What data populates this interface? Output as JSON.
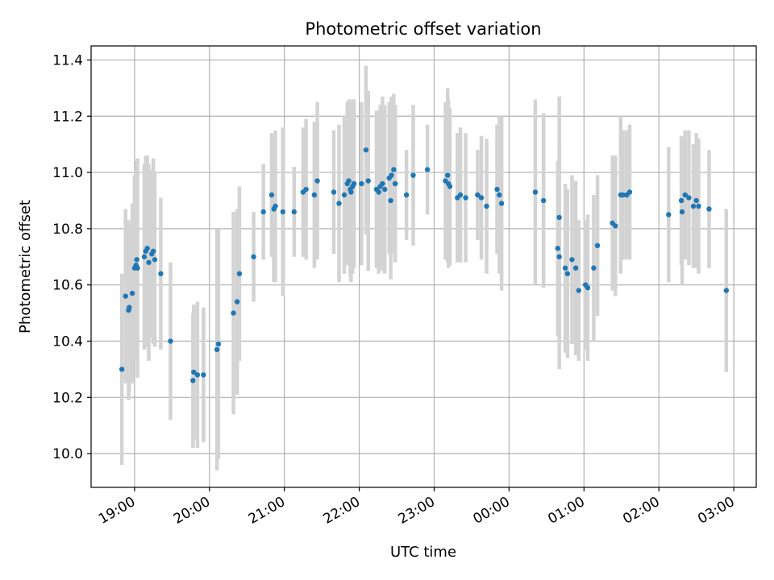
{
  "chart_data": {
    "type": "scatter",
    "title": "Photometric offset variation",
    "xlabel": "UTC time",
    "ylabel": "Photometric offset",
    "xlim": [
      18.42,
      27.3
    ],
    "ylim": [
      9.88,
      11.45
    ],
    "grid": true,
    "x_ticks": [
      {
        "value": 19,
        "label": "19:00"
      },
      {
        "value": 20,
        "label": "20:00"
      },
      {
        "value": 21,
        "label": "21:00"
      },
      {
        "value": 22,
        "label": "22:00"
      },
      {
        "value": 23,
        "label": "23:00"
      },
      {
        "value": 24,
        "label": "00:00"
      },
      {
        "value": 25,
        "label": "01:00"
      },
      {
        "value": 26,
        "label": "02:00"
      },
      {
        "value": 27,
        "label": "03:00"
      }
    ],
    "y_ticks": [
      {
        "value": 10.0,
        "label": "10.0"
      },
      {
        "value": 10.2,
        "label": "10.2"
      },
      {
        "value": 10.4,
        "label": "10.4"
      },
      {
        "value": 10.6,
        "label": "10.6"
      },
      {
        "value": 10.8,
        "label": "10.8"
      },
      {
        "value": 11.0,
        "label": "11.0"
      },
      {
        "value": 11.2,
        "label": "11.2"
      },
      {
        "value": 11.4,
        "label": "11.4"
      }
    ],
    "colors": {
      "point": "#1f77b4",
      "errorbar": "#d3d3d3",
      "grid": "#b0b0b0",
      "axes": "#000000"
    },
    "series": [
      {
        "x": [
          18.83,
          18.88,
          18.92,
          18.93,
          18.97,
          19.0,
          19.02,
          19.03,
          19.04,
          19.13,
          19.15,
          19.17,
          19.19,
          19.23,
          19.25,
          19.27,
          19.35,
          19.48,
          19.78,
          19.79,
          19.84,
          19.92,
          20.1,
          20.12,
          20.32,
          20.37,
          20.4,
          20.59,
          20.72,
          20.83,
          20.86,
          20.88,
          20.98,
          21.13,
          21.25,
          21.29,
          21.4,
          21.44,
          21.66,
          21.73,
          21.8,
          21.84,
          21.86,
          21.88,
          21.89,
          21.91,
          21.93,
          22.03,
          22.09,
          22.12,
          22.23,
          22.26,
          22.28,
          22.31,
          22.34,
          22.4,
          22.42,
          22.43,
          22.46,
          22.48,
          22.48,
          22.63,
          22.72,
          22.91,
          23.15,
          23.18,
          23.19,
          23.21,
          23.31,
          23.35,
          23.42,
          23.58,
          23.63,
          23.7,
          23.84,
          23.87,
          23.9,
          24.35,
          24.46,
          24.65,
          24.67,
          24.67,
          24.75,
          24.78,
          24.84,
          24.89,
          24.93,
          25.02,
          25.05,
          25.13,
          25.18,
          25.38,
          25.42,
          25.49,
          25.52,
          25.57,
          25.61,
          26.13,
          26.3,
          26.31,
          26.35,
          26.4,
          26.46,
          26.5,
          26.53,
          26.67,
          26.9
        ],
        "y": [
          10.3,
          10.56,
          10.51,
          10.52,
          10.57,
          10.66,
          10.67,
          10.69,
          10.66,
          10.7,
          10.72,
          10.73,
          10.68,
          10.71,
          10.72,
          10.69,
          10.64,
          10.4,
          10.26,
          10.29,
          10.28,
          10.28,
          10.37,
          10.39,
          10.5,
          10.54,
          10.64,
          10.7,
          10.86,
          10.92,
          10.87,
          10.88,
          10.86,
          10.86,
          10.93,
          10.94,
          10.92,
          10.97,
          10.93,
          10.89,
          10.92,
          10.96,
          10.97,
          10.94,
          10.93,
          10.95,
          10.96,
          10.96,
          11.08,
          10.97,
          10.94,
          10.93,
          10.95,
          10.96,
          10.94,
          10.98,
          10.9,
          10.99,
          11.01,
          10.96,
          10.96,
          10.92,
          10.99,
          11.01,
          10.97,
          10.99,
          10.96,
          10.95,
          10.91,
          10.92,
          10.91,
          10.92,
          10.91,
          10.88,
          10.94,
          10.92,
          10.89,
          10.93,
          10.9,
          10.73,
          10.7,
          10.84,
          10.66,
          10.64,
          10.69,
          10.66,
          10.58,
          10.6,
          10.59,
          10.66,
          10.74,
          10.82,
          10.81,
          10.92,
          10.92,
          10.92,
          10.93,
          10.85,
          10.9,
          10.86,
          10.92,
          10.91,
          10.88,
          10.9,
          10.88,
          10.87,
          10.58
        ],
        "err": [
          0.34,
          0.31,
          0.32,
          0.3,
          0.32,
          0.33,
          0.34,
          0.35,
          0.39,
          0.33,
          0.34,
          0.33,
          0.35,
          0.3,
          0.33,
          0.31,
          0.27,
          0.28,
          0.24,
          0.24,
          0.26,
          0.24,
          0.43,
          0.41,
          0.36,
          0.33,
          0.31,
          0.16,
          0.17,
          0.22,
          0.26,
          0.27,
          0.3,
          0.16,
          0.23,
          0.25,
          0.26,
          0.28,
          0.22,
          0.28,
          0.28,
          0.29,
          0.29,
          0.31,
          0.32,
          0.31,
          0.3,
          0.29,
          0.3,
          0.32,
          0.28,
          0.29,
          0.29,
          0.31,
          0.3,
          0.27,
          0.28,
          0.28,
          0.27,
          0.27,
          0.28,
          0.16,
          0.25,
          0.16,
          0.28,
          0.31,
          0.3,
          0.28,
          0.23,
          0.24,
          0.23,
          0.16,
          0.22,
          0.24,
          0.23,
          0.28,
          0.31,
          0.33,
          0.31,
          0.31,
          0.4,
          0.43,
          0.3,
          0.3,
          0.3,
          0.31,
          0.25,
          0.23,
          0.26,
          0.26,
          0.25,
          0.24,
          0.25,
          0.28,
          0.23,
          0.23,
          0.24,
          0.24,
          0.23,
          0.26,
          0.23,
          0.24,
          0.22,
          0.24,
          0.24,
          0.21,
          0.29
        ]
      }
    ]
  }
}
